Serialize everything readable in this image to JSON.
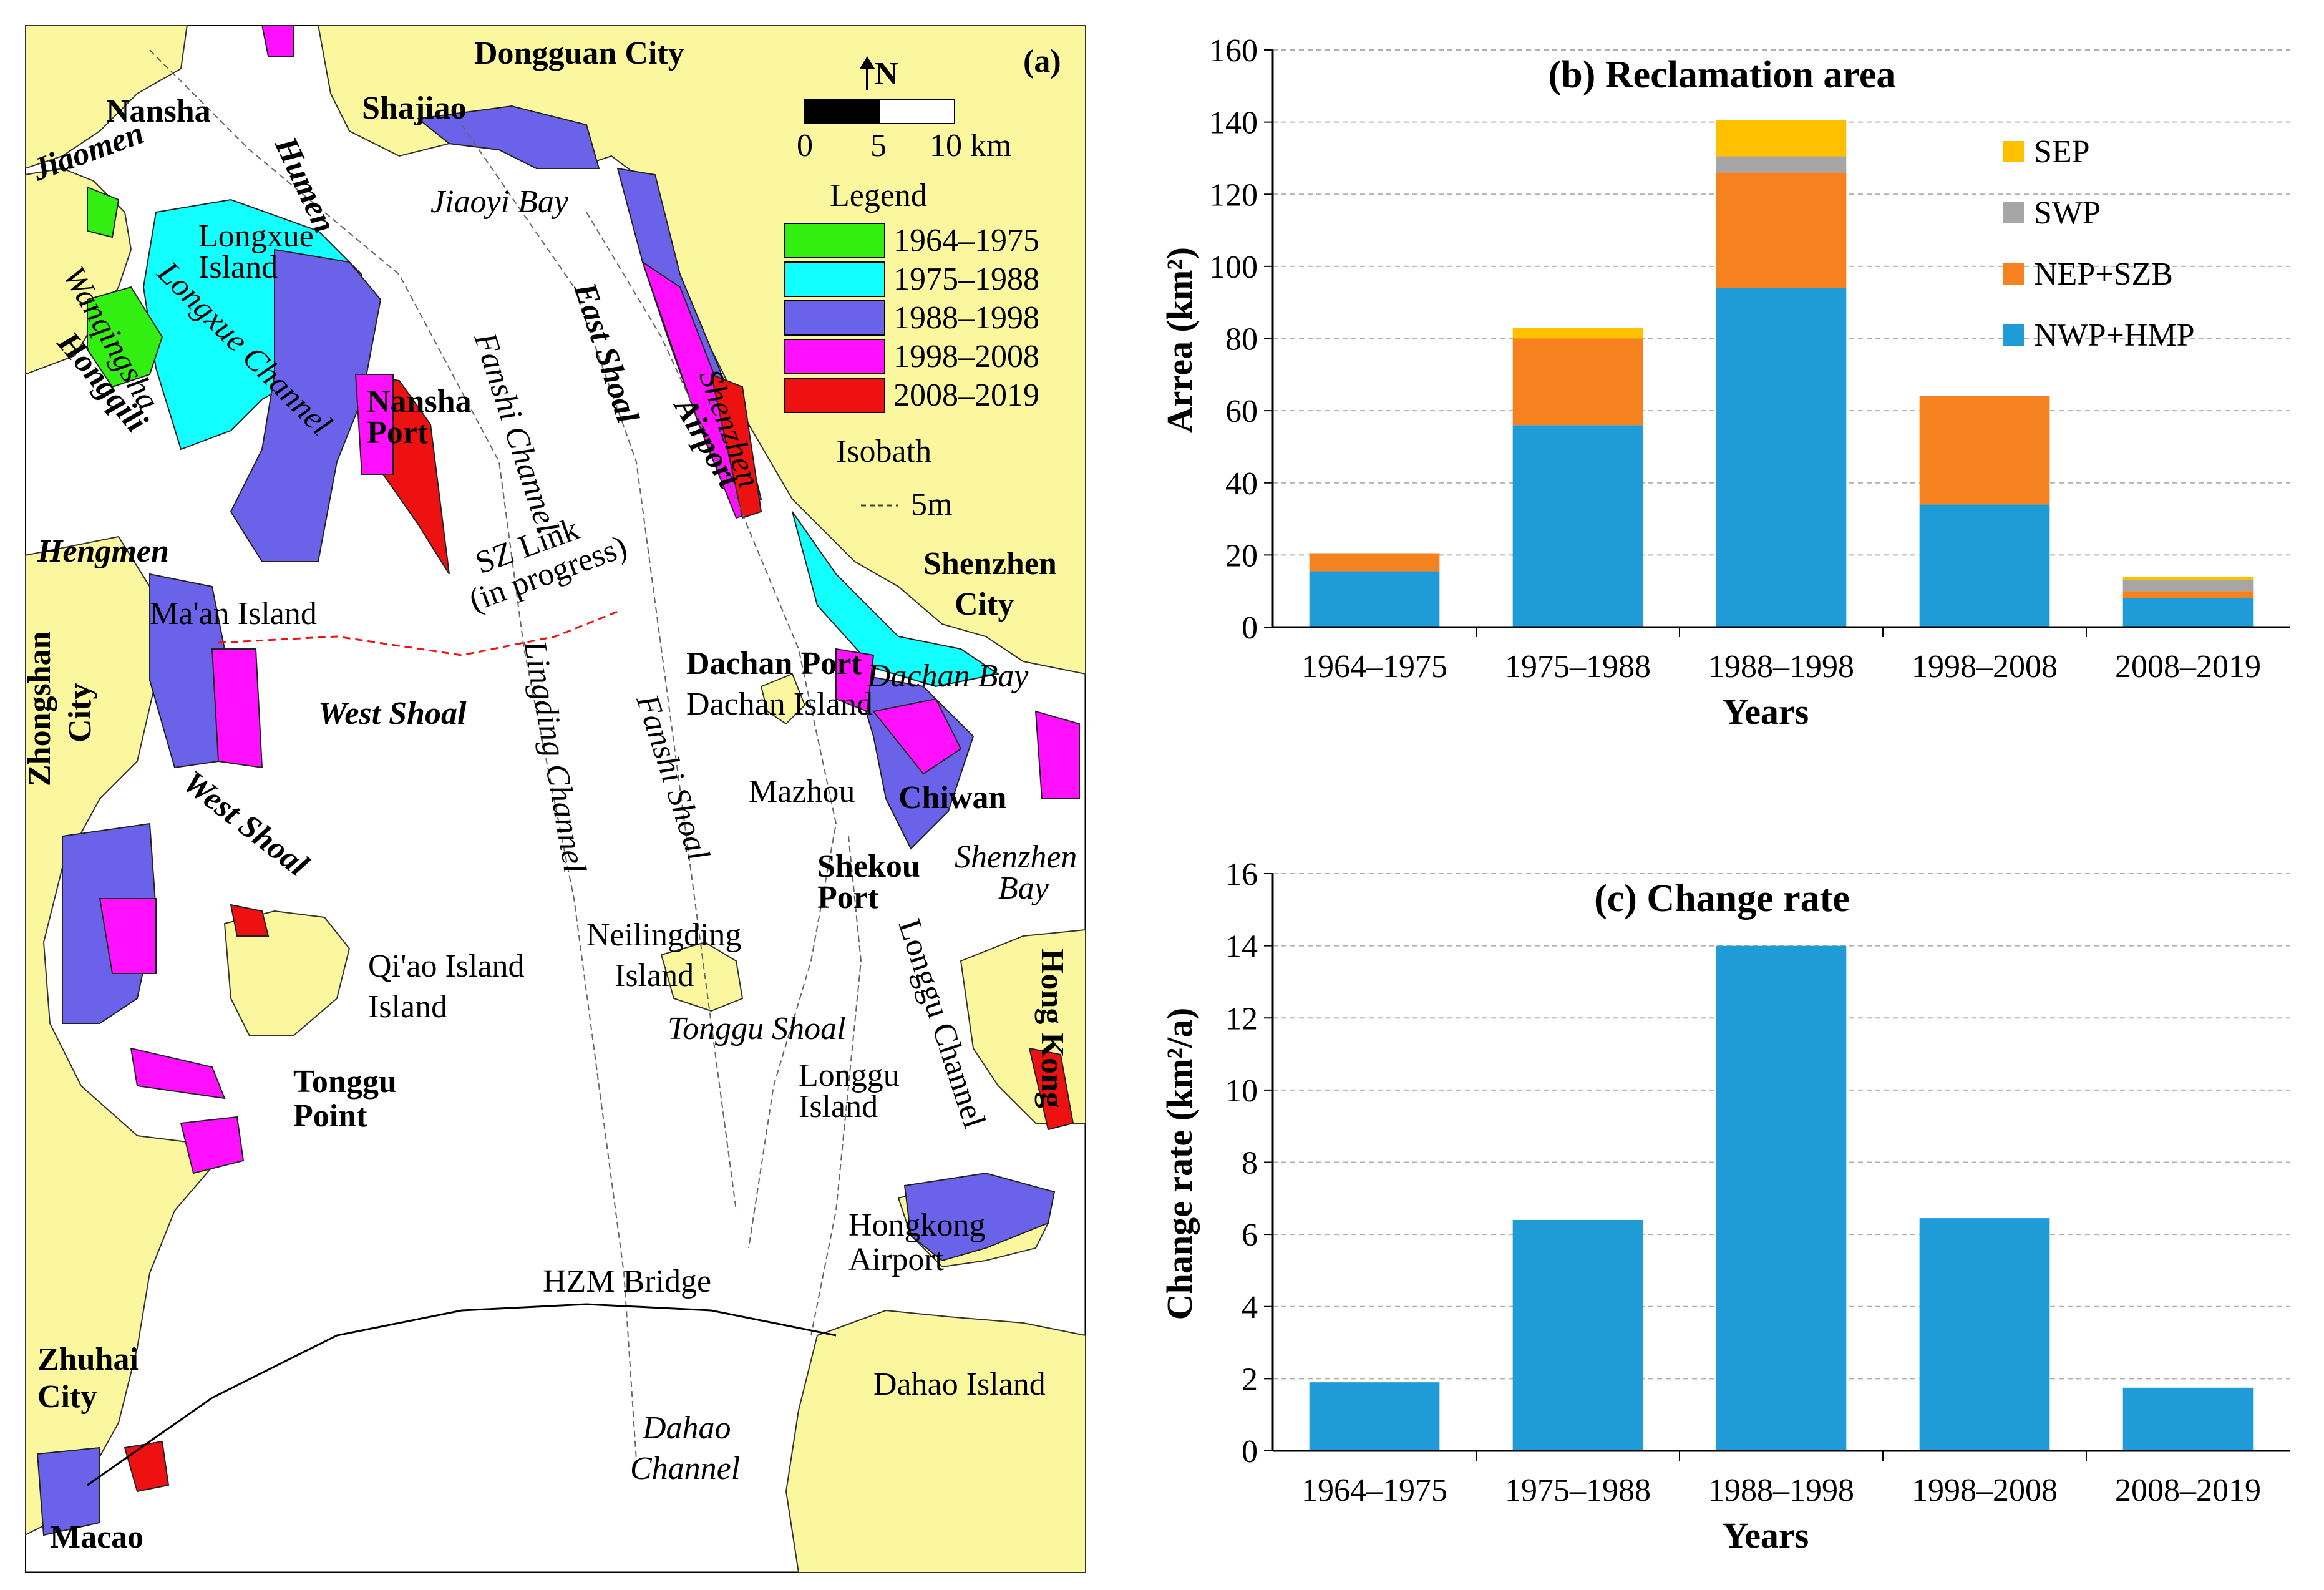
{
  "map": {
    "panel_label": "(a)",
    "scale": {
      "t0": "0",
      "t1": "5",
      "t2": "10 km"
    },
    "north": "N",
    "legend": {
      "title": "Legend",
      "items": [
        {
          "label": "1964–1975",
          "color": "#33ee11"
        },
        {
          "label": "1975–1988",
          "color": "#11ffff"
        },
        {
          "label": "1988–1998",
          "color": "#6a62e8"
        },
        {
          "label": "1998–2008",
          "color": "#ff11ff"
        },
        {
          "label": "2008–2019",
          "color": "#ee1111"
        }
      ],
      "isobath_title": "Isobath",
      "isobath_label": "5m"
    },
    "places": {
      "dongguan": "Dongguan City",
      "nansha": "Nansha",
      "humen": "Humen",
      "shajiao": "Shajiao",
      "jiaomen": "Jiaomen",
      "jiaoyi_bay": "Jiaoyi Bay",
      "longxue1": "Longxue",
      "longxue2": "Island",
      "longxue_channel": "Longxue Channel",
      "wanqingsha": "Wanqingsha",
      "hongqili": "Hongqili",
      "nansha_port1": "Nansha",
      "nansha_port2": "Port",
      "fanshi_channel": "Fanshi Channel",
      "east_shoal": "East Shoal",
      "shenzhen": "Shenzhen",
      "airport": "Airport",
      "hengmen": "Hengmen",
      "maan": "Ma'an Island",
      "sz_link1": "SZ Link",
      "sz_link2": "(in progress)",
      "shenzhen_city1": "Shenzhen",
      "shenzhen_city2": "City",
      "zhongshan1": "Zhongshan",
      "zhongshan2": "City",
      "west_shoal_1": "West Shoal",
      "west_shoal_2": "West Shoal",
      "lingding_channel": "Lingding Channel",
      "fanshi_shoal": "Fanshi Shoal",
      "dachan_port": "Dachan Port",
      "dachan_island": "Dachan Island",
      "dachan_bay": "Dachan Bay",
      "mazhou": "Mazhou",
      "chiwan": "Chiwan",
      "shekou1": "Shekou",
      "shekou2": "Port",
      "shenzhen_bay1": "Shenzhen",
      "shenzhen_bay2": "Bay",
      "qiao1": "Qi'ao Island",
      "qiao2": "Island",
      "neilingding1": "Neilingding",
      "neilingding2": "Island",
      "tonggu_shoal": "Tonggu Shoal",
      "longgu_channel": "Longgu Channel",
      "hong_kong": "Hong Kong",
      "tonggu_point1": "Tonggu",
      "tonggu_point2": "Point",
      "longgu_island1": "Longgu",
      "longgu_island2": "Island",
      "hk_airport1": "Hongkong",
      "hk_airport2": "Airport",
      "hzm_bridge": "HZM Bridge",
      "zhuhai1": "Zhuhai",
      "zhuhai2": "City",
      "dahao_island": "Dahao Island",
      "dahao_channel1": "Dahao",
      "dahao_channel2": "Channel",
      "macao": "Macao"
    }
  },
  "chart_data": [
    {
      "type": "bar",
      "stacked": true,
      "title": "(b) Reclamation area",
      "xlabel": "Years",
      "ylabel": "Arrea (km²)",
      "ylim": [
        0,
        160
      ],
      "yticks": [
        0,
        20,
        40,
        60,
        80,
        100,
        120,
        140,
        160
      ],
      "grid": true,
      "legend_position": "top-right",
      "categories": [
        "1964–1975",
        "1975–1988",
        "1988–1998",
        "1998–2008",
        "2008–2019"
      ],
      "series": [
        {
          "name": "NWP+HMP",
          "color": "#1f9bd7",
          "values": [
            15.5,
            56,
            94,
            34,
            8
          ]
        },
        {
          "name": "NEP+SZB",
          "color": "#f5821f",
          "values": [
            5,
            24,
            32,
            30,
            2
          ]
        },
        {
          "name": "SWP",
          "color": "#a6a6a6",
          "values": [
            0,
            0,
            4.5,
            0,
            3
          ]
        },
        {
          "name": "SEP",
          "color": "#ffc000",
          "values": [
            0,
            3,
            10,
            0,
            1
          ]
        }
      ]
    },
    {
      "type": "bar",
      "title": "(c) Change rate",
      "xlabel": "Years",
      "ylabel": "Change rate (km²/a)",
      "ylim": [
        0,
        16
      ],
      "yticks": [
        0,
        2,
        4,
        6,
        8,
        10,
        12,
        14,
        16
      ],
      "grid": true,
      "categories": [
        "1964–1975",
        "1975–1988",
        "1988–1998",
        "1998–2008",
        "2008–2019"
      ],
      "series": [
        {
          "name": "Change rate",
          "color": "#1f9bd7",
          "values": [
            1.9,
            6.4,
            14.0,
            6.45,
            1.75
          ]
        }
      ]
    }
  ]
}
